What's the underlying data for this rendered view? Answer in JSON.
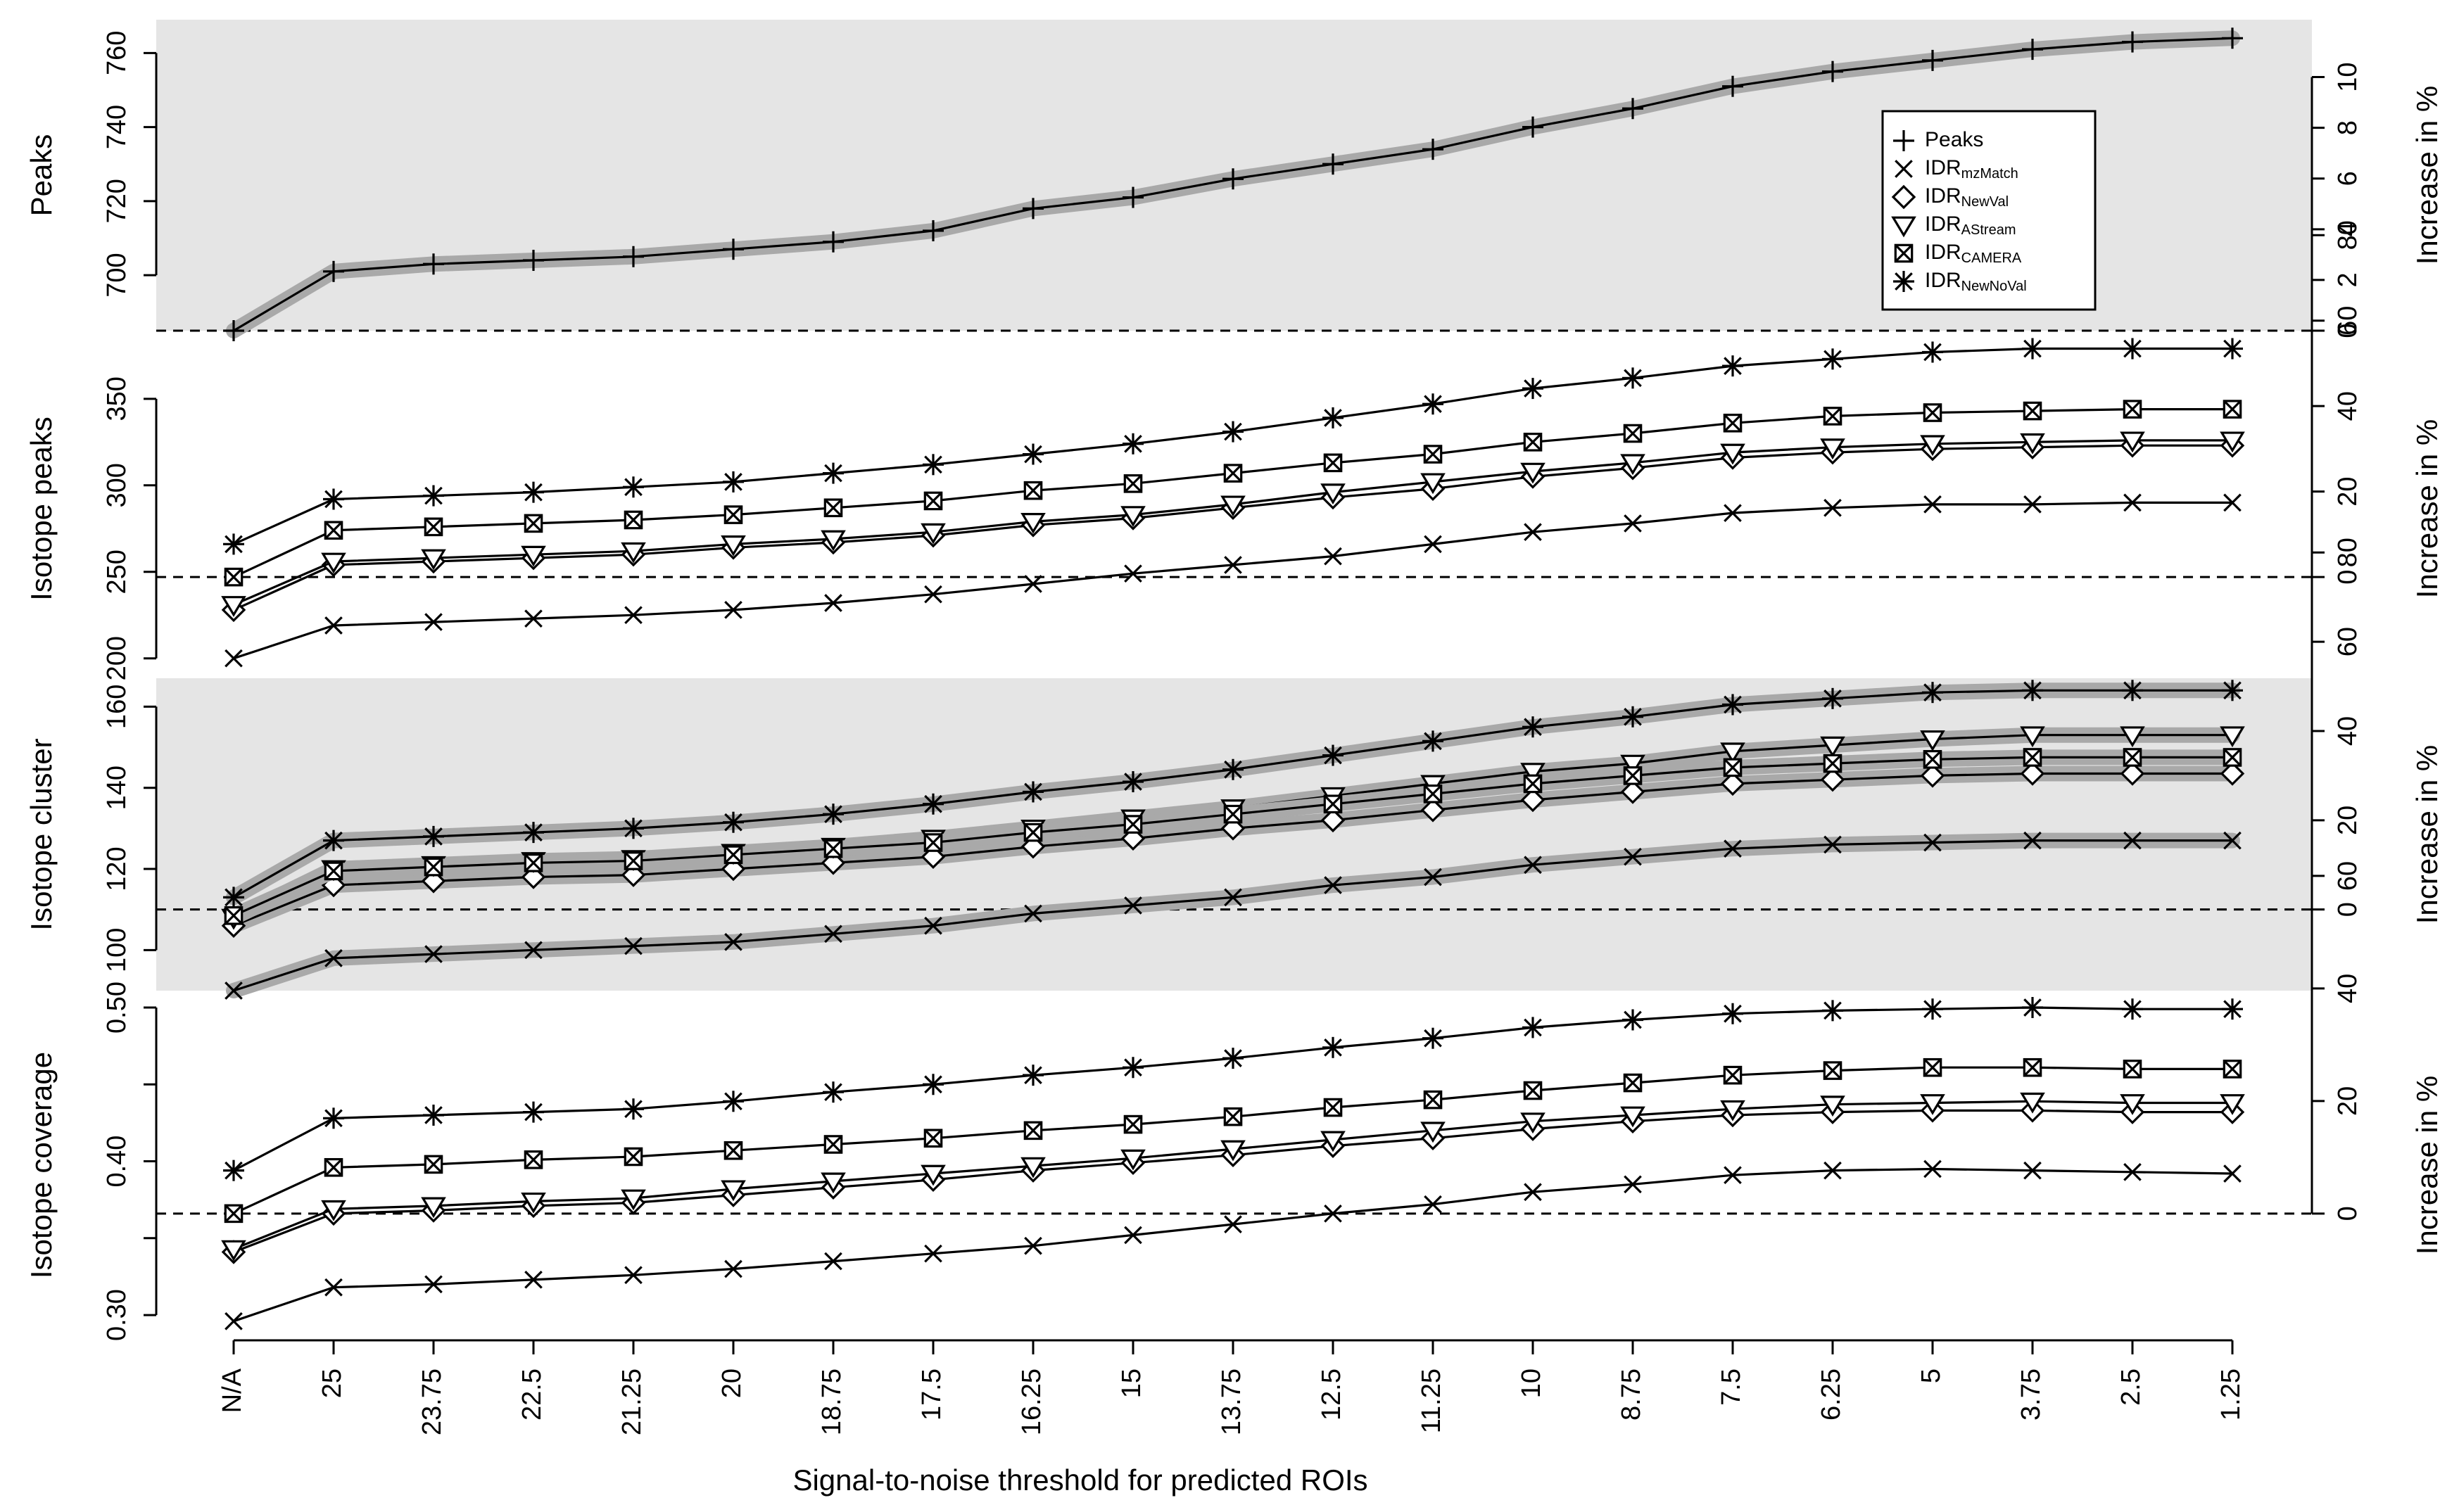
{
  "chart_data": {
    "type": "line",
    "x_categories": [
      "N/A",
      "25",
      "23.75",
      "22.5",
      "21.25",
      "20",
      "18.75",
      "17.5",
      "16.25",
      "15",
      "13.75",
      "12.5",
      "11.25",
      "10",
      "8.75",
      "7.5",
      "6.25",
      "5",
      "3.75",
      "2.5",
      "1.25"
    ],
    "xlabel": "Signal-to-noise threshold for predicted ROIs",
    "right_axis_label": "Increase in %",
    "legend": {
      "placement": "top-right of first panel",
      "entries": [
        {
          "prefix": "Peaks",
          "sub": "",
          "marker": "plus"
        },
        {
          "prefix": "IDR",
          "sub": "mzMatch",
          "marker": "cross"
        },
        {
          "prefix": "IDR",
          "sub": "NewVal",
          "marker": "diamond"
        },
        {
          "prefix": "IDR",
          "sub": "AStream",
          "marker": "triangle-down"
        },
        {
          "prefix": "IDR",
          "sub": "CAMERA",
          "marker": "boxed-cross"
        },
        {
          "prefix": "IDR",
          "sub": "NewNoVal",
          "marker": "asterisk"
        }
      ]
    },
    "panels": [
      {
        "ylabel": "Peaks",
        "background": "#e5e5e5",
        "ylim": [
          685,
          769
        ],
        "yticks": [
          700,
          720,
          740,
          760
        ],
        "ytick_labels": [
          "700",
          "720",
          "740",
          "760"
        ],
        "baseline": 685,
        "right_ticks": [
          0,
          2,
          4,
          6,
          8,
          10
        ],
        "band": true,
        "series": [
          {
            "marker": "plus",
            "values": [
              685,
              701,
              703,
              704,
              705,
              707,
              709,
              712,
              718,
              721,
              726,
              730,
              734,
              740,
              745,
              751,
              755,
              758,
              761,
              763,
              764
            ]
          }
        ]
      },
      {
        "ylabel": "Isotope peaks",
        "background": "#ffffff",
        "ylim": [
          195,
          378
        ],
        "yticks": [
          200,
          250,
          300,
          350
        ],
        "ytick_labels": [
          "200",
          "250",
          "300",
          "350"
        ],
        "baseline": 247,
        "right_ticks": [
          0,
          20,
          40,
          60,
          80
        ],
        "band": false,
        "series": [
          {
            "marker": "cross",
            "values": [
              200,
              219,
              221,
              223,
              225,
              228,
              232,
              237,
              243,
              249,
              254,
              259,
              266,
              273,
              278,
              284,
              287,
              289,
              289,
              290,
              290
            ]
          },
          {
            "marker": "diamond",
            "values": [
              228,
              254,
              256,
              258,
              260,
              264,
              267,
              271,
              277,
              281,
              287,
              293,
              298,
              305,
              310,
              316,
              319,
              321,
              322,
              323,
              323
            ]
          },
          {
            "marker": "triangle-down",
            "values": [
              231,
              256,
              258,
              260,
              262,
              266,
              269,
              273,
              279,
              283,
              289,
              296,
              302,
              308,
              313,
              319,
              322,
              324,
              325,
              326,
              326
            ]
          },
          {
            "marker": "boxed-cross",
            "values": [
              247,
              274,
              276,
              278,
              280,
              283,
              287,
              291,
              297,
              301,
              307,
              313,
              318,
              325,
              330,
              336,
              340,
              342,
              343,
              344,
              344
            ]
          },
          {
            "marker": "asterisk",
            "values": [
              266,
              292,
              294,
              296,
              299,
              302,
              307,
              312,
              318,
              324,
              331,
              339,
              347,
              356,
              362,
              369,
              373,
              377,
              379,
              379,
              379
            ]
          }
        ]
      },
      {
        "ylabel": "Isotope cluster",
        "background": "#e5e5e5",
        "ylim": [
          90,
          167
        ],
        "yticks": [
          100,
          120,
          140,
          160
        ],
        "ytick_labels": [
          "100",
          "120",
          "140",
          "160"
        ],
        "baseline": 110,
        "right_ticks": [
          0,
          20,
          40,
          60,
          80
        ],
        "band": true,
        "series": [
          {
            "marker": "cross",
            "values": [
              90,
              98,
              99,
              100,
              101,
              102,
              104,
              106,
              109,
              111,
              113,
              116,
              118,
              121,
              123,
              125,
              126,
              126.5,
              127,
              127,
              127
            ]
          },
          {
            "marker": "diamond",
            "values": [
              106,
              116,
              117,
              118,
              118.5,
              120,
              121.5,
              123,
              125.5,
              127.5,
              130,
              132,
              134.5,
              137,
              139,
              141,
              142,
              143,
              143.5,
              143.5,
              143.5
            ]
          },
          {
            "marker": "triangle-down",
            "values": [
              108,
              120,
              121,
              122,
              122.5,
              124,
              125.5,
              127.5,
              130,
              132.5,
              135,
              138,
              141,
              144,
              146,
              149,
              150.5,
              152,
              153,
              153,
              153
            ]
          },
          {
            "marker": "boxed-cross",
            "values": [
              108.5,
              119.5,
              120.5,
              121.5,
              122,
              123.5,
              125,
              126.5,
              129,
              131,
              133.5,
              136,
              138.5,
              141,
              143,
              145,
              146,
              147,
              147.5,
              147.5,
              147.5
            ]
          },
          {
            "marker": "asterisk",
            "values": [
              113,
              127,
              128,
              129,
              130,
              131.5,
              133.5,
              136,
              139,
              141.5,
              144.5,
              148,
              151.5,
              155,
              157.5,
              160.5,
              162,
              163.5,
              164,
              164,
              164
            ]
          }
        ]
      },
      {
        "ylabel": "Isotope coverage",
        "background": "#ffffff",
        "ylim": [
          0.295,
          0.5
        ],
        "yticks": [
          0.3,
          0.4,
          0.5
        ],
        "ytick_labels": [
          "0.30",
          "0.40",
          "0.50"
        ],
        "minor_yticks": [
          0.35,
          0.45
        ],
        "baseline": 0.366,
        "right_ticks": [
          0,
          20,
          40,
          60
        ],
        "band": false,
        "series": [
          {
            "marker": "cross",
            "values": [
              0.296,
              0.318,
              0.32,
              0.323,
              0.326,
              0.33,
              0.335,
              0.34,
              0.345,
              0.352,
              0.359,
              0.366,
              0.372,
              0.38,
              0.385,
              0.391,
              0.394,
              0.395,
              0.394,
              0.393,
              0.392
            ]
          },
          {
            "marker": "diamond",
            "values": [
              0.341,
              0.366,
              0.368,
              0.371,
              0.373,
              0.378,
              0.383,
              0.388,
              0.394,
              0.399,
              0.404,
              0.41,
              0.415,
              0.421,
              0.426,
              0.43,
              0.432,
              0.433,
              0.433,
              0.432,
              0.432
            ]
          },
          {
            "marker": "triangle-down",
            "values": [
              0.343,
              0.369,
              0.371,
              0.374,
              0.376,
              0.382,
              0.387,
              0.392,
              0.397,
              0.402,
              0.408,
              0.414,
              0.42,
              0.426,
              0.43,
              0.434,
              0.437,
              0.438,
              0.439,
              0.438,
              0.438
            ]
          },
          {
            "marker": "boxed-cross",
            "values": [
              0.366,
              0.396,
              0.398,
              0.401,
              0.403,
              0.407,
              0.411,
              0.415,
              0.42,
              0.424,
              0.429,
              0.435,
              0.44,
              0.446,
              0.451,
              0.456,
              0.459,
              0.461,
              0.461,
              0.46,
              0.46
            ]
          },
          {
            "marker": "asterisk",
            "values": [
              0.394,
              0.428,
              0.43,
              0.432,
              0.434,
              0.439,
              0.445,
              0.45,
              0.456,
              0.461,
              0.467,
              0.474,
              0.48,
              0.487,
              0.492,
              0.496,
              0.498,
              0.499,
              0.5,
              0.499,
              0.499
            ]
          }
        ]
      }
    ]
  }
}
